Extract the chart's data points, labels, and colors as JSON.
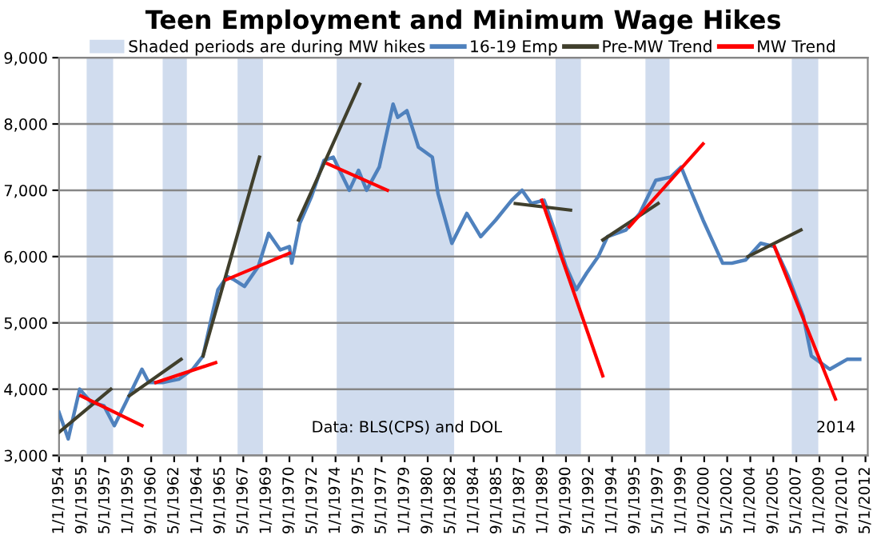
{
  "chart_data": {
    "type": "line",
    "title": "Teen Employment and Minimum Wage Hikes",
    "xlim": [
      "1954-01",
      "2012-07"
    ],
    "xticks": [
      {
        "value": "1954-01",
        "label": "1/1/1954"
      },
      {
        "value": "1955-09",
        "label": "9/1/1955"
      },
      {
        "value": "1957-05",
        "label": "5/1/1957"
      },
      {
        "value": "1959-01",
        "label": "1/1/1959"
      },
      {
        "value": "1960-09",
        "label": "9/1/1960"
      },
      {
        "value": "1962-05",
        "label": "5/1/1962"
      },
      {
        "value": "1964-01",
        "label": "1/1/1964"
      },
      {
        "value": "1965-09",
        "label": "9/1/1965"
      },
      {
        "value": "1967-05",
        "label": "5/1/1967"
      },
      {
        "value": "1969-01",
        "label": "1/1/1969"
      },
      {
        "value": "1970-09",
        "label": "9/1/1970"
      },
      {
        "value": "1972-05",
        "label": "5/1/1972"
      },
      {
        "value": "1974-01",
        "label": "1/1/1974"
      },
      {
        "value": "1975-09",
        "label": "9/1/1975"
      },
      {
        "value": "1977-05",
        "label": "5/1/1977"
      },
      {
        "value": "1979-01",
        "label": "1/1/1979"
      },
      {
        "value": "1980-09",
        "label": "9/1/1980"
      },
      {
        "value": "1982-05",
        "label": "5/1/1982"
      },
      {
        "value": "1984-01",
        "label": "1/1/1984"
      },
      {
        "value": "1985-09",
        "label": "9/1/1985"
      },
      {
        "value": "1987-05",
        "label": "5/1/1987"
      },
      {
        "value": "1989-01",
        "label": "1/1/1989"
      },
      {
        "value": "1990-09",
        "label": "9/1/1990"
      },
      {
        "value": "1992-05",
        "label": "5/1/1992"
      },
      {
        "value": "1994-01",
        "label": "1/1/1994"
      },
      {
        "value": "1995-09",
        "label": "9/1/1995"
      },
      {
        "value": "1997-05",
        "label": "5/1/1997"
      },
      {
        "value": "1999-01",
        "label": "1/1/1999"
      },
      {
        "value": "2000-09",
        "label": "9/1/2000"
      },
      {
        "value": "2002-05",
        "label": "5/1/2002"
      },
      {
        "value": "2004-01",
        "label": "1/1/2004"
      },
      {
        "value": "2005-09",
        "label": "9/1/2005"
      },
      {
        "value": "2007-05",
        "label": "5/1/2007"
      },
      {
        "value": "2009-01",
        "label": "1/1/2009"
      },
      {
        "value": "2010-09",
        "label": "9/1/2010"
      },
      {
        "value": "2012-05",
        "label": "5/1/2012"
      }
    ],
    "ylim": [
      3000,
      9000
    ],
    "yticks": [
      {
        "value": 3000,
        "label": "3,000"
      },
      {
        "value": 4000,
        "label": "4,000"
      },
      {
        "value": 5000,
        "label": "5,000"
      },
      {
        "value": 6000,
        "label": "6,000"
      },
      {
        "value": 7000,
        "label": "7,000"
      },
      {
        "value": 8000,
        "label": "8,000"
      },
      {
        "value": 9000,
        "label": "9,000"
      }
    ],
    "grid": "y",
    "legend": "top",
    "bands": [
      {
        "axis": "x",
        "from": "1956-01",
        "to": "1957-12",
        "label": "Shaded periods are during MW hikes",
        "color": "#d0dcee"
      },
      {
        "axis": "x",
        "from": "1961-07",
        "to": "1963-04",
        "color": "#d0dcee"
      },
      {
        "axis": "x",
        "from": "1966-12",
        "to": "1968-10",
        "color": "#d0dcee"
      },
      {
        "axis": "x",
        "from": "1974-02",
        "to": "1982-08",
        "color": "#d0dcee"
      },
      {
        "axis": "x",
        "from": "1989-12",
        "to": "1991-10",
        "color": "#d0dcee"
      },
      {
        "axis": "x",
        "from": "1996-06",
        "to": "1998-03",
        "color": "#d0dcee"
      },
      {
        "axis": "x",
        "from": "2007-01",
        "to": "2008-12",
        "color": "#d0dcee"
      }
    ],
    "series": [
      {
        "name": "16-19 Emp",
        "color": "#4f81bd",
        "x": [
          "1954-01",
          "1954-09",
          "1955-07",
          "1956-05",
          "1957-04",
          "1958-01",
          "1958-11",
          "1960-01",
          "1960-07",
          "1961-07",
          "1962-09",
          "1963-09",
          "1964-06",
          "1965-01",
          "1965-07",
          "1966-03",
          "1966-09",
          "1967-06",
          "1968-06",
          "1969-03",
          "1970-01",
          "1970-09",
          "1970-11",
          "1971-06",
          "1972-04",
          "1973-03",
          "1973-11",
          "1975-01",
          "1975-09",
          "1976-04",
          "1977-03",
          "1978-03",
          "1978-07",
          "1979-03",
          "1980-01",
          "1981-01",
          "1981-06",
          "1982-06",
          "1983-07",
          "1984-07",
          "1985-08",
          "1986-10",
          "1987-07",
          "1988-03",
          "1989-02",
          "1989-11",
          "1990-09",
          "1991-06",
          "1992-03",
          "1993-01",
          "1993-09",
          "1995-01",
          "1996-01",
          "1997-03",
          "1998-04",
          "1999-01",
          "1999-08",
          "2000-08",
          "2002-01",
          "2002-09",
          "2003-09",
          "2004-10",
          "2005-10",
          "2006-10",
          "2007-11",
          "2008-06",
          "2009-10",
          "2011-01",
          "2011-12"
        ],
        "values": [
          3650,
          3250,
          4000,
          3800,
          3750,
          3450,
          3800,
          4300,
          4100,
          4100,
          4150,
          4300,
          4500,
          5050,
          5500,
          5700,
          5650,
          5550,
          5850,
          6350,
          6100,
          6150,
          5900,
          6500,
          6900,
          7450,
          7500,
          7000,
          7300,
          7000,
          7350,
          8300,
          8100,
          8200,
          7650,
          7500,
          6950,
          6200,
          6650,
          6300,
          6550,
          6850,
          7000,
          6800,
          6850,
          6400,
          5850,
          5500,
          5750,
          6000,
          6300,
          6400,
          6650,
          7150,
          7200,
          7350,
          7050,
          6550,
          5900,
          5900,
          5950,
          6200,
          6150,
          5700,
          5100,
          4500,
          4300,
          4450,
          4450
        ]
      },
      {
        "name": "Pre-MW Trend",
        "color": "#403f2c",
        "x": [
          "1954-01",
          "1957-10",
          "1957-11",
          "1959-02",
          "1962-11",
          "1962-12",
          "1964-06",
          "1968-07",
          "1968-08",
          "1971-05",
          "1975-10",
          "1975-11",
          "1987-01",
          "1991-01",
          "1991-02",
          "1993-05",
          "1997-05",
          "1997-06",
          "2003-11",
          "2007-09"
        ],
        "values": [
          3350,
          4000,
          null,
          3900,
          4450,
          null,
          4500,
          7500,
          null,
          6550,
          8600,
          null,
          6800,
          6700,
          null,
          6250,
          6800,
          null,
          6000,
          6400
        ]
      },
      {
        "name": "MW Trend",
        "color": "#ff0000",
        "x": [
          "1955-08",
          "1960-01",
          "1960-02",
          "1961-01",
          "1965-05",
          "1965-06",
          "1966-02",
          "1970-09",
          "1970-10",
          "1973-06",
          "1977-10",
          "1977-11",
          "1988-12",
          "1993-05",
          "1993-06",
          "1995-04",
          "2000-08",
          "2000-09",
          "2005-10",
          "2010-03"
        ],
        "values": [
          3900,
          3450,
          null,
          4100,
          4400,
          null,
          5650,
          6050,
          null,
          7400,
          7000,
          null,
          6850,
          4200,
          null,
          6450,
          7700,
          null,
          6150,
          3850
        ]
      }
    ],
    "annotations": [
      "Data: BLS(CPS) and DOL",
      "2014"
    ]
  }
}
